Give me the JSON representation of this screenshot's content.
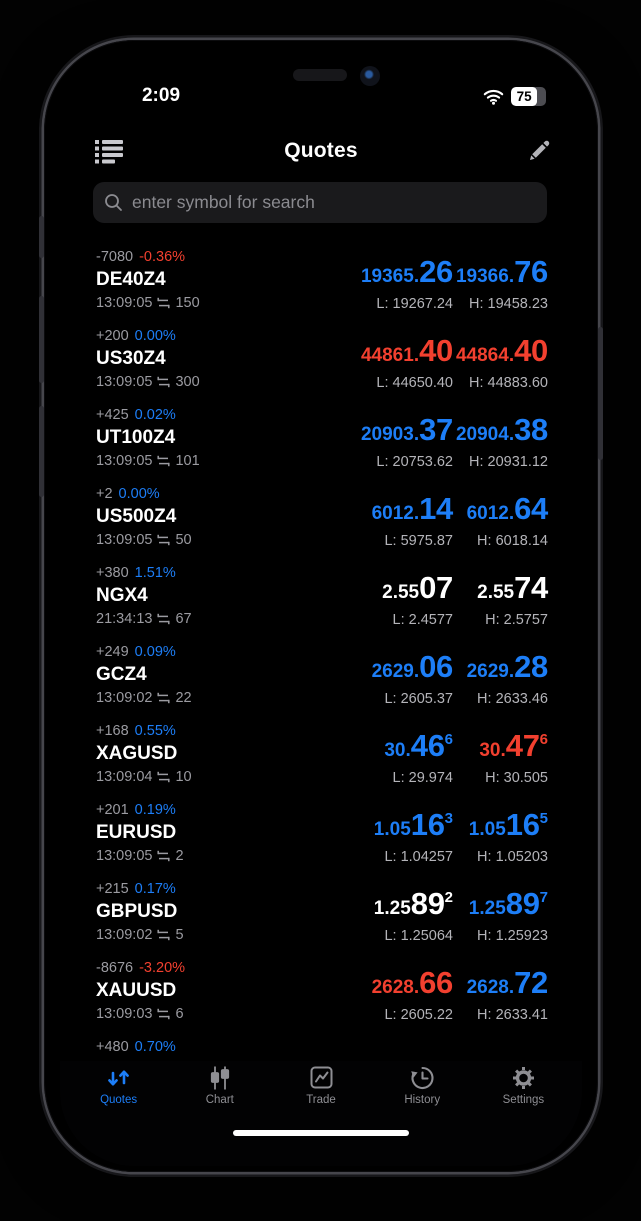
{
  "status_bar": {
    "time": "2:09",
    "battery_percent": "75"
  },
  "header": {
    "title": "Quotes"
  },
  "search": {
    "placeholder": "enter symbol for search"
  },
  "colors": {
    "up_blue": "#1d7ef7",
    "down_red": "#f2402f",
    "flat_white": "#ffffff",
    "muted_gray": "#9b9ba1"
  },
  "quotes": [
    {
      "symbol": "DE40Z4",
      "change": "-7080",
      "change_pct": "-0.36%",
      "pct_dir": "down",
      "time": "13:09:05",
      "spread": "150",
      "bid": {
        "base": "19365.",
        "big": "26",
        "sup": "",
        "dir": "up"
      },
      "ask": {
        "base": "19366.",
        "big": "76",
        "sup": "",
        "dir": "up"
      },
      "low": "L: 19267.24",
      "high": "H: 19458.23"
    },
    {
      "symbol": "US30Z4",
      "change": "+200",
      "change_pct": "0.00%",
      "pct_dir": "up",
      "time": "13:09:05",
      "spread": "300",
      "bid": {
        "base": "44861.",
        "big": "40",
        "sup": "",
        "dir": "down"
      },
      "ask": {
        "base": "44864.",
        "big": "40",
        "sup": "",
        "dir": "down"
      },
      "low": "L: 44650.40",
      "high": "H: 44883.60"
    },
    {
      "symbol": "UT100Z4",
      "change": "+425",
      "change_pct": "0.02%",
      "pct_dir": "up",
      "time": "13:09:05",
      "spread": "101",
      "bid": {
        "base": "20903.",
        "big": "37",
        "sup": "",
        "dir": "up"
      },
      "ask": {
        "base": "20904.",
        "big": "38",
        "sup": "",
        "dir": "up"
      },
      "low": "L: 20753.62",
      "high": "H: 20931.12"
    },
    {
      "symbol": "US500Z4",
      "change": "+2",
      "change_pct": "0.00%",
      "pct_dir": "up",
      "time": "13:09:05",
      "spread": "50",
      "bid": {
        "base": "6012.",
        "big": "14",
        "sup": "",
        "dir": "up"
      },
      "ask": {
        "base": "6012.",
        "big": "64",
        "sup": "",
        "dir": "up"
      },
      "low": "L: 5975.87",
      "high": "H: 6018.14"
    },
    {
      "symbol": "NGX4",
      "change": "+380",
      "change_pct": "1.51%",
      "pct_dir": "up",
      "time": "21:34:13",
      "spread": "67",
      "bid": {
        "base": "2.55",
        "big": "07",
        "sup": "",
        "dir": "flat"
      },
      "ask": {
        "base": "2.55",
        "big": "74",
        "sup": "",
        "dir": "flat"
      },
      "low": "L: 2.4577",
      "high": "H: 2.5757"
    },
    {
      "symbol": "GCZ4",
      "change": "+249",
      "change_pct": "0.09%",
      "pct_dir": "up",
      "time": "13:09:02",
      "spread": "22",
      "bid": {
        "base": "2629.",
        "big": "06",
        "sup": "",
        "dir": "up"
      },
      "ask": {
        "base": "2629.",
        "big": "28",
        "sup": "",
        "dir": "up"
      },
      "low": "L: 2605.37",
      "high": "H: 2633.46"
    },
    {
      "symbol": "XAGUSD",
      "change": "+168",
      "change_pct": "0.55%",
      "pct_dir": "up",
      "time": "13:09:04",
      "spread": "10",
      "bid": {
        "base": "30.",
        "big": "46",
        "sup": "6",
        "dir": "up"
      },
      "ask": {
        "base": "30.",
        "big": "47",
        "sup": "6",
        "dir": "down"
      },
      "low": "L: 29.974",
      "high": "H: 30.505"
    },
    {
      "symbol": "EURUSD",
      "change": "+201",
      "change_pct": "0.19%",
      "pct_dir": "up",
      "time": "13:09:05",
      "spread": "2",
      "bid": {
        "base": "1.05",
        "big": "16",
        "sup": "3",
        "dir": "up"
      },
      "ask": {
        "base": "1.05",
        "big": "16",
        "sup": "5",
        "dir": "up"
      },
      "low": "L: 1.04257",
      "high": "H: 1.05203"
    },
    {
      "symbol": "GBPUSD",
      "change": "+215",
      "change_pct": "0.17%",
      "pct_dir": "up",
      "time": "13:09:02",
      "spread": "5",
      "bid": {
        "base": "1.25",
        "big": "89",
        "sup": "2",
        "dir": "flat"
      },
      "ask": {
        "base": "1.25",
        "big": "89",
        "sup": "7",
        "dir": "up"
      },
      "low": "L: 1.25064",
      "high": "H: 1.25923"
    },
    {
      "symbol": "XAUUSD",
      "change": "-8676",
      "change_pct": "-3.20%",
      "pct_dir": "down",
      "time": "13:09:03",
      "spread": "6",
      "bid": {
        "base": "2628.",
        "big": "66",
        "sup": "",
        "dir": "down"
      },
      "ask": {
        "base": "2628.",
        "big": "72",
        "sup": "",
        "dir": "up"
      },
      "low": "L: 2605.22",
      "high": "H: 2633.41"
    }
  ],
  "partial_quote": {
    "change": "+480",
    "change_pct": "0.70%",
    "pct_dir": "up"
  },
  "tab_bar": [
    {
      "label": "Quotes",
      "active": true
    },
    {
      "label": "Chart",
      "active": false
    },
    {
      "label": "Trade",
      "active": false
    },
    {
      "label": "History",
      "active": false
    },
    {
      "label": "Settings",
      "active": false
    }
  ]
}
